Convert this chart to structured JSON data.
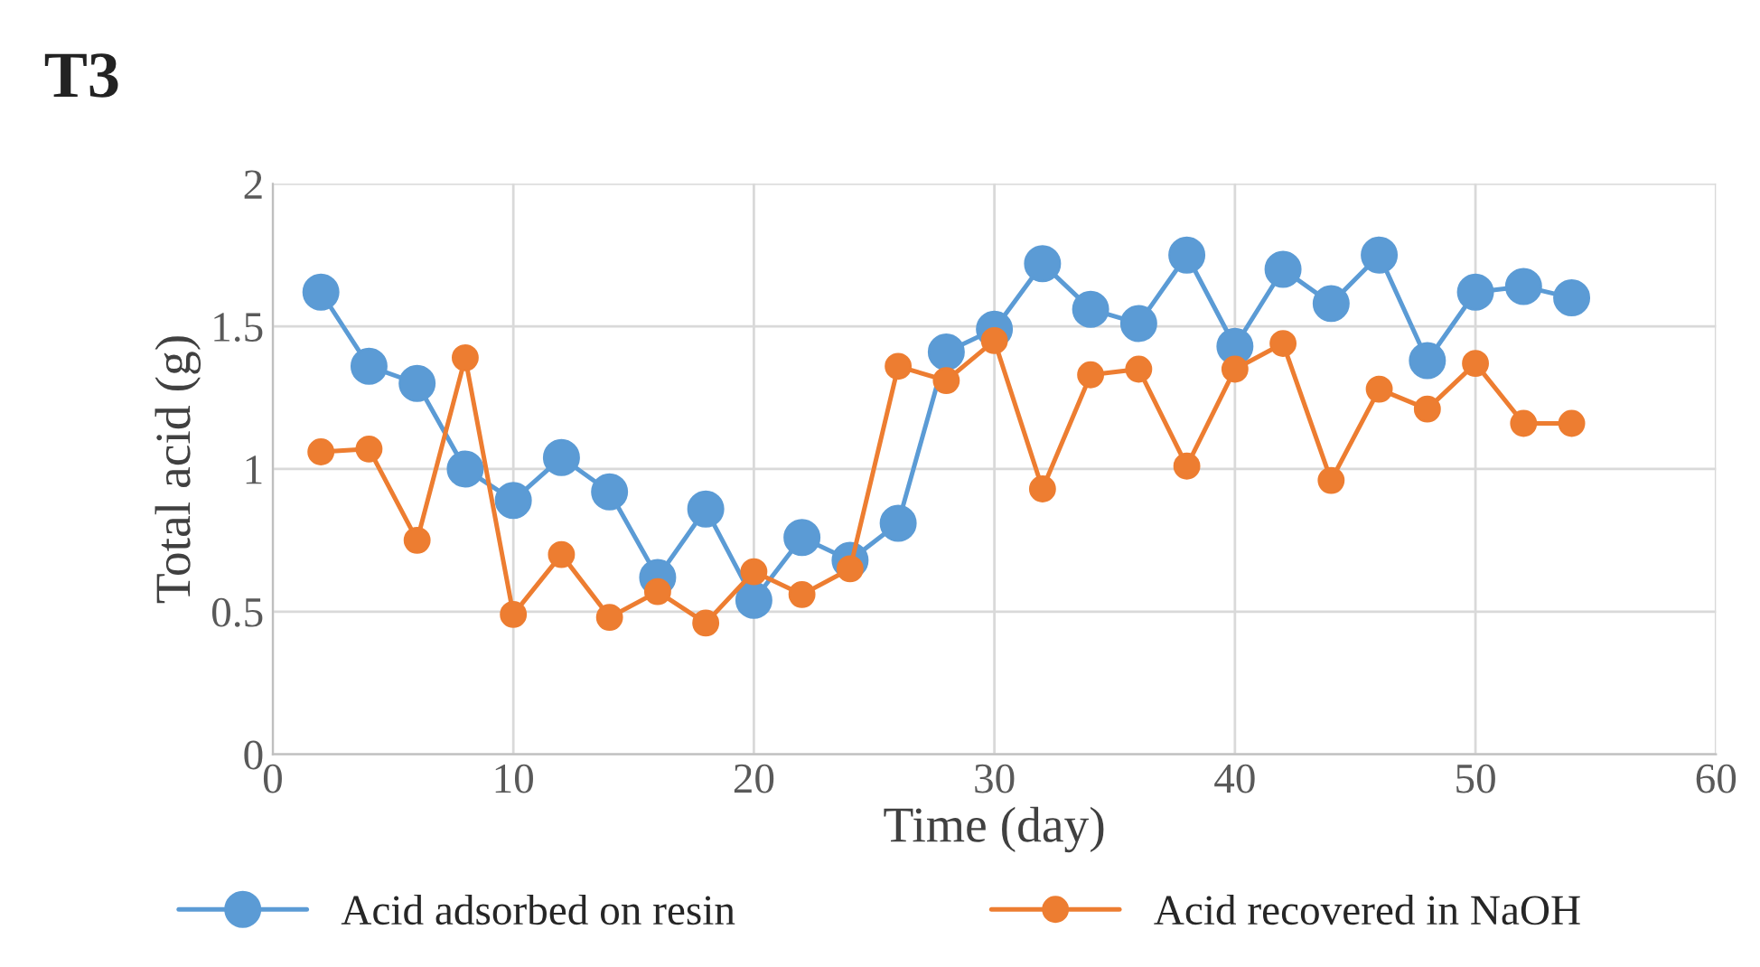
{
  "chart_data": {
    "type": "line",
    "title": "T3",
    "xlabel": "Time (day)",
    "ylabel": "Total acid (g)",
    "x": [
      2,
      4,
      6,
      8,
      10,
      12,
      14,
      16,
      18,
      20,
      22,
      24,
      26,
      28,
      30,
      32,
      34,
      36,
      38,
      40,
      42,
      44,
      46,
      48,
      50,
      52,
      54
    ],
    "series": [
      {
        "name": "Acid adsorbed on resin",
        "color": "#5b9bd5",
        "values": [
          1.62,
          1.36,
          1.3,
          1.0,
          0.89,
          1.04,
          0.92,
          0.62,
          0.86,
          0.54,
          0.76,
          0.68,
          0.81,
          1.41,
          1.49,
          1.72,
          1.56,
          1.51,
          1.75,
          1.43,
          1.7,
          1.58,
          1.75,
          1.38,
          1.62,
          1.64,
          1.6
        ]
      },
      {
        "name": "Acid recovered in NaOH",
        "color": "#ed7d31",
        "values": [
          1.06,
          1.07,
          0.75,
          1.39,
          0.49,
          0.7,
          0.48,
          0.57,
          0.46,
          0.64,
          0.56,
          0.65,
          1.36,
          1.31,
          1.45,
          0.93,
          1.33,
          1.35,
          1.01,
          1.35,
          1.44,
          0.96,
          1.28,
          1.21,
          1.37,
          1.16,
          1.16
        ]
      }
    ],
    "xlim": [
      0,
      60
    ],
    "xticks": [
      0,
      10,
      20,
      30,
      40,
      50,
      60
    ],
    "ylim": [
      0,
      2
    ],
    "yticks": [
      0,
      0.5,
      1,
      1.5,
      2
    ],
    "grid": true,
    "legend": "bottom",
    "marker": "circle",
    "line_style": "solid"
  }
}
